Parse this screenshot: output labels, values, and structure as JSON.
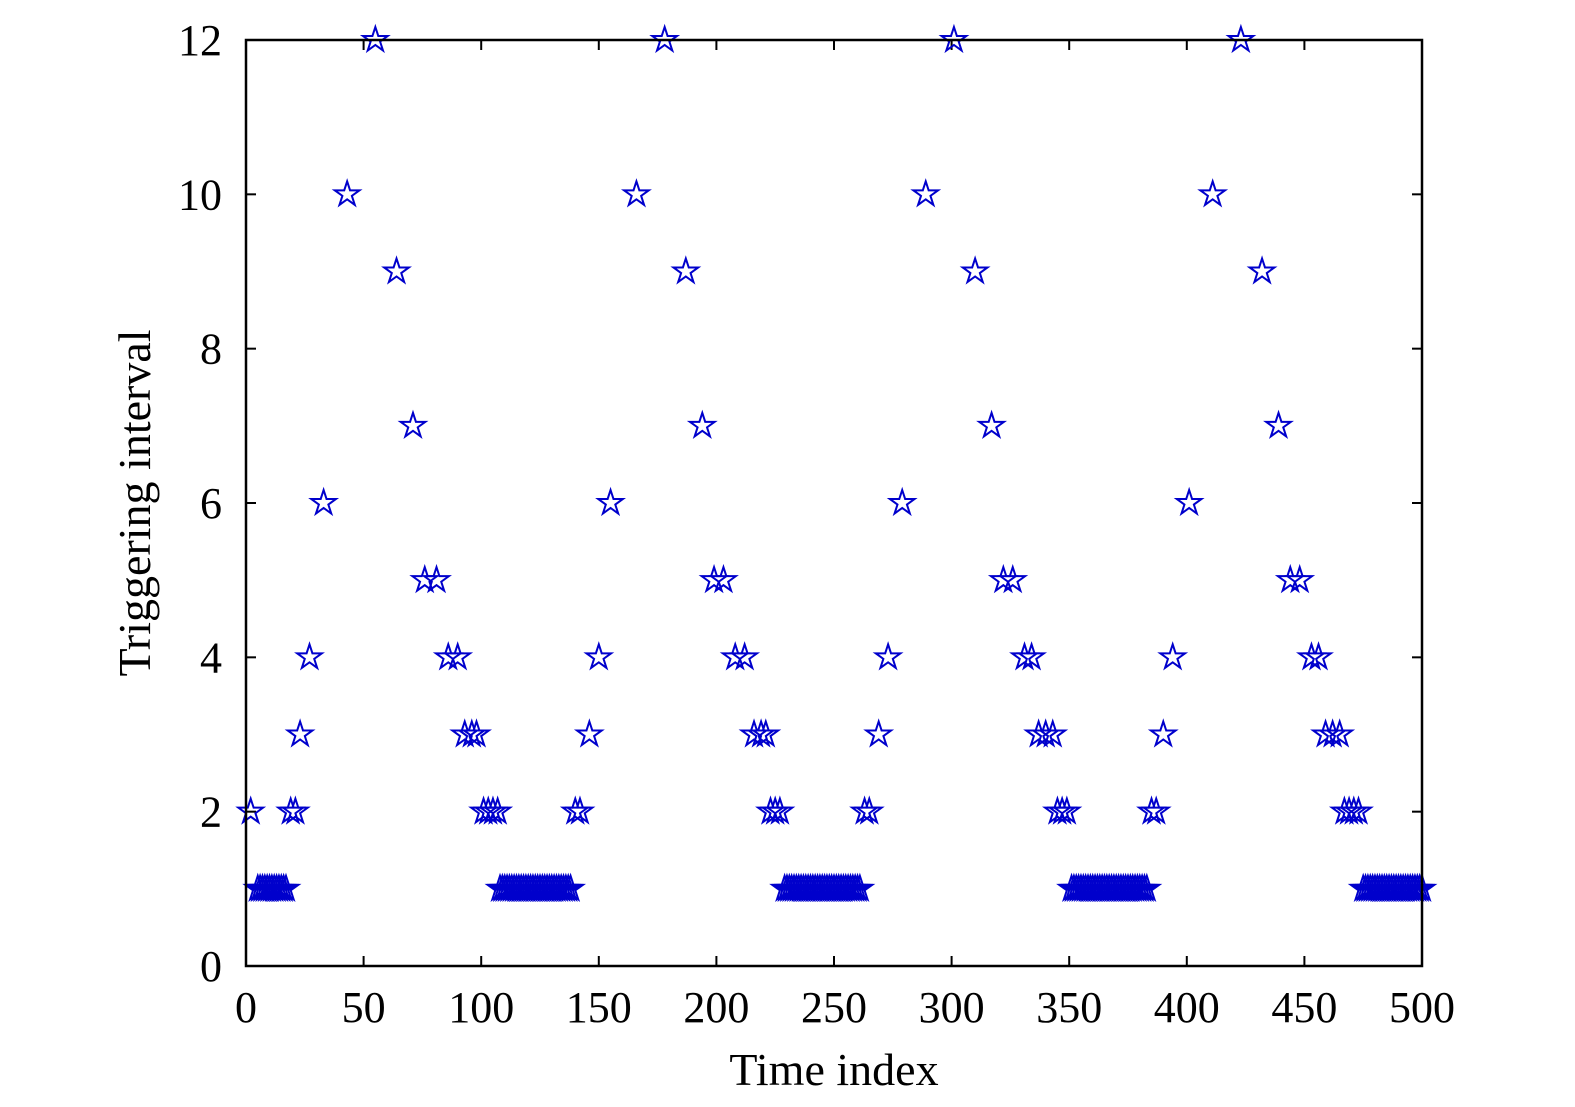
{
  "chart_data": {
    "type": "scatter",
    "title": "",
    "xlabel": "Time index",
    "ylabel": "Triggering interval",
    "xlim": [
      0,
      500
    ],
    "ylim": [
      0,
      12
    ],
    "xticks": [
      0,
      50,
      100,
      150,
      200,
      250,
      300,
      350,
      400,
      450,
      500
    ],
    "yticks": [
      0,
      2,
      4,
      6,
      8,
      10,
      12
    ],
    "grid": false,
    "legend": "none",
    "marker": "pentagram",
    "color": "#0000cc",
    "series": [
      {
        "points": [
          [
            2,
            2
          ],
          [
            5,
            1
          ],
          [
            6,
            1
          ],
          [
            7,
            1
          ],
          [
            8,
            1
          ],
          [
            9,
            1
          ],
          [
            10,
            1
          ],
          [
            11,
            1
          ],
          [
            12,
            1
          ],
          [
            13,
            1
          ],
          [
            14,
            1
          ],
          [
            15,
            1
          ],
          [
            16,
            1
          ],
          [
            17,
            1
          ],
          [
            19,
            2
          ],
          [
            21,
            2
          ],
          [
            23,
            3
          ],
          [
            27,
            4
          ],
          [
            33,
            6
          ],
          [
            43,
            10
          ],
          [
            55,
            12
          ],
          [
            64,
            9
          ],
          [
            71,
            7
          ],
          [
            76,
            5
          ],
          [
            81,
            5
          ],
          [
            86,
            4
          ],
          [
            90,
            4
          ],
          [
            93,
            3
          ],
          [
            96,
            3
          ],
          [
            98,
            3
          ],
          [
            101,
            2
          ],
          [
            103,
            2
          ],
          [
            105,
            2
          ],
          [
            107,
            2
          ],
          [
            108,
            1
          ],
          [
            109,
            1
          ],
          [
            110,
            1
          ],
          [
            111,
            1
          ],
          [
            112,
            1
          ],
          [
            113,
            1
          ],
          [
            114,
            1
          ],
          [
            115,
            1
          ],
          [
            116,
            1
          ],
          [
            117,
            1
          ],
          [
            118,
            1
          ],
          [
            119,
            1
          ],
          [
            120,
            1
          ],
          [
            121,
            1
          ],
          [
            122,
            1
          ],
          [
            123,
            1
          ],
          [
            124,
            1
          ],
          [
            125,
            1
          ],
          [
            126,
            1
          ],
          [
            127,
            1
          ],
          [
            128,
            1
          ],
          [
            129,
            1
          ],
          [
            130,
            1
          ],
          [
            131,
            1
          ],
          [
            132,
            1
          ],
          [
            133,
            1
          ],
          [
            134,
            1
          ],
          [
            135,
            1
          ],
          [
            136,
            1
          ],
          [
            137,
            1
          ],
          [
            138,
            1
          ],
          [
            140,
            2
          ],
          [
            142,
            2
          ],
          [
            146,
            3
          ],
          [
            150,
            4
          ],
          [
            155,
            6
          ],
          [
            166,
            10
          ],
          [
            178,
            12
          ],
          [
            187,
            9
          ],
          [
            194,
            7
          ],
          [
            199,
            5
          ],
          [
            203,
            5
          ],
          [
            208,
            4
          ],
          [
            212,
            4
          ],
          [
            216,
            3
          ],
          [
            219,
            3
          ],
          [
            221,
            3
          ],
          [
            223,
            2
          ],
          [
            225,
            2
          ],
          [
            227,
            2
          ],
          [
            229,
            1
          ],
          [
            230,
            1
          ],
          [
            231,
            1
          ],
          [
            232,
            1
          ],
          [
            233,
            1
          ],
          [
            234,
            1
          ],
          [
            235,
            1
          ],
          [
            236,
            1
          ],
          [
            237,
            1
          ],
          [
            238,
            1
          ],
          [
            239,
            1
          ],
          [
            240,
            1
          ],
          [
            241,
            1
          ],
          [
            242,
            1
          ],
          [
            243,
            1
          ],
          [
            244,
            1
          ],
          [
            245,
            1
          ],
          [
            246,
            1
          ],
          [
            247,
            1
          ],
          [
            248,
            1
          ],
          [
            249,
            1
          ],
          [
            250,
            1
          ],
          [
            251,
            1
          ],
          [
            252,
            1
          ],
          [
            253,
            1
          ],
          [
            254,
            1
          ],
          [
            255,
            1
          ],
          [
            256,
            1
          ],
          [
            257,
            1
          ],
          [
            258,
            1
          ],
          [
            259,
            1
          ],
          [
            260,
            1
          ],
          [
            261,
            1
          ],
          [
            263,
            2
          ],
          [
            265,
            2
          ],
          [
            269,
            3
          ],
          [
            273,
            4
          ],
          [
            279,
            6
          ],
          [
            289,
            10
          ],
          [
            301,
            12
          ],
          [
            310,
            9
          ],
          [
            317,
            7
          ],
          [
            322,
            5
          ],
          [
            326,
            5
          ],
          [
            331,
            4
          ],
          [
            334,
            4
          ],
          [
            337,
            3
          ],
          [
            340,
            3
          ],
          [
            343,
            3
          ],
          [
            345,
            2
          ],
          [
            347,
            2
          ],
          [
            349,
            2
          ],
          [
            351,
            1
          ],
          [
            352,
            1
          ],
          [
            353,
            1
          ],
          [
            354,
            1
          ],
          [
            355,
            1
          ],
          [
            356,
            1
          ],
          [
            357,
            1
          ],
          [
            358,
            1
          ],
          [
            359,
            1
          ],
          [
            360,
            1
          ],
          [
            361,
            1
          ],
          [
            362,
            1
          ],
          [
            363,
            1
          ],
          [
            364,
            1
          ],
          [
            365,
            1
          ],
          [
            366,
            1
          ],
          [
            367,
            1
          ],
          [
            368,
            1
          ],
          [
            369,
            1
          ],
          [
            370,
            1
          ],
          [
            371,
            1
          ],
          [
            372,
            1
          ],
          [
            373,
            1
          ],
          [
            374,
            1
          ],
          [
            375,
            1
          ],
          [
            376,
            1
          ],
          [
            377,
            1
          ],
          [
            378,
            1
          ],
          [
            379,
            1
          ],
          [
            380,
            1
          ],
          [
            381,
            1
          ],
          [
            382,
            1
          ],
          [
            383,
            1
          ],
          [
            385,
            2
          ],
          [
            387,
            2
          ],
          [
            390,
            3
          ],
          [
            394,
            4
          ],
          [
            401,
            6
          ],
          [
            411,
            10
          ],
          [
            423,
            12
          ],
          [
            432,
            9
          ],
          [
            439,
            7
          ],
          [
            444,
            5
          ],
          [
            448,
            5
          ],
          [
            453,
            4
          ],
          [
            456,
            4
          ],
          [
            459,
            3
          ],
          [
            462,
            3
          ],
          [
            465,
            3
          ],
          [
            467,
            2
          ],
          [
            469,
            2
          ],
          [
            471,
            2
          ],
          [
            473,
            2
          ],
          [
            475,
            1
          ],
          [
            476,
            1
          ],
          [
            477,
            1
          ],
          [
            478,
            1
          ],
          [
            479,
            1
          ],
          [
            480,
            1
          ],
          [
            481,
            1
          ],
          [
            482,
            1
          ],
          [
            483,
            1
          ],
          [
            484,
            1
          ],
          [
            485,
            1
          ],
          [
            486,
            1
          ],
          [
            487,
            1
          ],
          [
            488,
            1
          ],
          [
            489,
            1
          ],
          [
            490,
            1
          ],
          [
            491,
            1
          ],
          [
            492,
            1
          ],
          [
            493,
            1
          ],
          [
            494,
            1
          ],
          [
            495,
            1
          ],
          [
            496,
            1
          ],
          [
            497,
            1
          ],
          [
            498,
            1
          ],
          [
            499,
            1
          ],
          [
            500,
            1
          ]
        ]
      }
    ]
  }
}
